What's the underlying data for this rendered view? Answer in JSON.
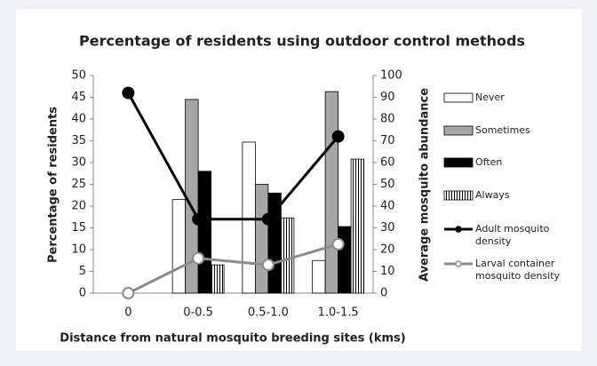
{
  "chart_data": {
    "type": "bar",
    "title": "Percentage of residents using outdoor control methods",
    "x_label": "Distance from natural mosquito breeding sites (kms)",
    "y_label": "Percentage of residents",
    "y2_label": "Average mosquito abundance",
    "categories": [
      "0",
      "0-0.5",
      "0.5-1.0",
      "1.0-1.5"
    ],
    "ylim": [
      0,
      50
    ],
    "yticks": [
      0,
      5,
      10,
      15,
      20,
      25,
      30,
      35,
      40,
      45,
      50
    ],
    "y2lim": [
      0,
      100
    ],
    "y2ticks": [
      0,
      10,
      20,
      30,
      40,
      50,
      60,
      70,
      80,
      90,
      100
    ],
    "series": [
      {
        "name": "Never",
        "color": "#ffffff",
        "values": [
          0,
          21.5,
          34.7,
          7.5
        ]
      },
      {
        "name": "Sometimes",
        "color": "#a6a6a6",
        "values": [
          0,
          44.5,
          25,
          46.3
        ]
      },
      {
        "name": "Often",
        "color": "#000000",
        "values": [
          0,
          28,
          23,
          15.3
        ]
      },
      {
        "name": "Always",
        "color": "#ffffff",
        "pattern": "vertical-lines",
        "values": [
          0,
          6.5,
          17.3,
          30.8
        ]
      },
      {
        "name": "Adult mosquito density",
        "type": "line",
        "axis": "y2",
        "color": "#000000",
        "marker_fill": "#000000",
        "values": [
          92,
          34,
          34,
          72
        ]
      },
      {
        "name": "Larval container mosquito density",
        "type": "line",
        "axis": "y2",
        "color": "#8c8c8c",
        "marker_fill": "#ffffff",
        "values": [
          0,
          16,
          13,
          22.5
        ]
      }
    ]
  }
}
